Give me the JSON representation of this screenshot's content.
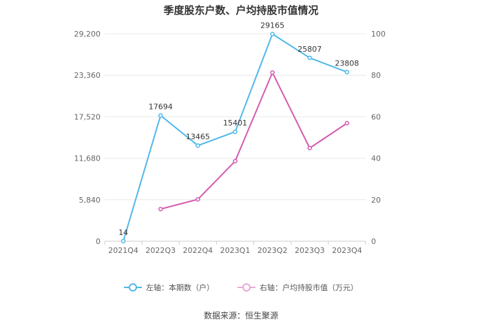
{
  "chart_data": {
    "type": "line",
    "title": "季度股东户数、户均持股市值情况",
    "categories": [
      "2021Q4",
      "2022Q3",
      "2022Q4",
      "2023Q1",
      "2023Q2",
      "2023Q3",
      "2023Q4"
    ],
    "left_axis": {
      "min": 0,
      "max": 29200,
      "ticks": [
        "0",
        "5,840",
        "11,680",
        "17,520",
        "23,360",
        "29,200"
      ],
      "tick_values": [
        0,
        5840,
        11680,
        17520,
        23360,
        29200
      ]
    },
    "right_axis": {
      "min": 0,
      "max": 100,
      "ticks": [
        "0",
        "20",
        "40",
        "60",
        "80",
        "100"
      ],
      "tick_values": [
        0,
        20,
        40,
        60,
        80,
        100
      ]
    },
    "series": [
      {
        "name": "左轴：本期数（户）",
        "axis": "left",
        "color": "#4fb8ea",
        "values": [
          14,
          17694,
          13465,
          15401,
          29165,
          25807,
          23808
        ],
        "labels": [
          "14",
          "17694",
          "13465",
          "15401",
          "29165",
          "25807",
          "23808"
        ]
      },
      {
        "name": "右轴：户均持股市值（万元）",
        "axis": "right",
        "color": "#d45ab0",
        "values": [
          null,
          15.5,
          20.2,
          38.6,
          81.3,
          44.9,
          56.9
        ]
      }
    ],
    "grid": true,
    "legend_position": "bottom"
  },
  "source": "数据来源：恒生聚源"
}
